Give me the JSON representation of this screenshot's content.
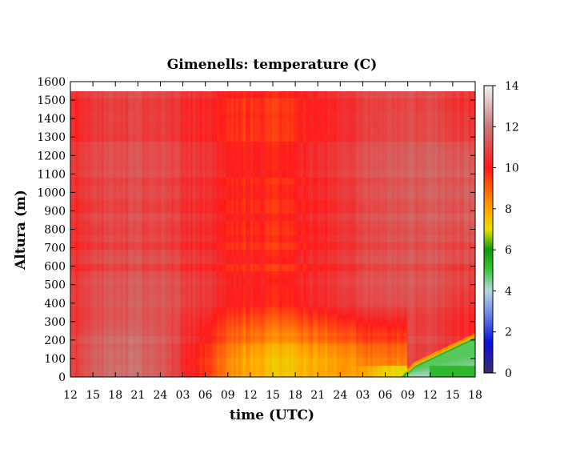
{
  "chart_data": {
    "type": "heatmap",
    "title": "Gimenells: temperature (C)",
    "xlabel": "time (UTC)",
    "ylabel": "Altura (m)",
    "x_ticks": [
      "12",
      "15",
      "18",
      "21",
      "24",
      "03",
      "06",
      "09",
      "12",
      "15",
      "18",
      "21",
      "24",
      "03",
      "06",
      "09",
      "12",
      "15",
      "18"
    ],
    "y_ticks": [
      0,
      100,
      200,
      300,
      400,
      500,
      600,
      700,
      800,
      900,
      1000,
      1100,
      1200,
      1300,
      1400,
      1500,
      1600
    ],
    "ylim": [
      0,
      1600
    ],
    "data_top": 1550,
    "colorbar": {
      "min": 0,
      "max": 14,
      "ticks": [
        0,
        2,
        4,
        6,
        8,
        10,
        12,
        14
      ],
      "stops": [
        {
          "v": 0,
          "color": "#3c2a6e"
        },
        {
          "v": 1.5,
          "color": "#0c10d8"
        },
        {
          "v": 3,
          "color": "#7a90e8"
        },
        {
          "v": 4,
          "color": "#b8d8dc"
        },
        {
          "v": 5,
          "color": "#3ec43c"
        },
        {
          "v": 6,
          "color": "#0c9a0c"
        },
        {
          "v": 7,
          "color": "#e8e000"
        },
        {
          "v": 8,
          "color": "#ffa500"
        },
        {
          "v": 10,
          "color": "#ff1a1a"
        },
        {
          "v": 12,
          "color": "#c87878"
        },
        {
          "v": 14,
          "color": "#f2f2f2"
        }
      ]
    }
  }
}
